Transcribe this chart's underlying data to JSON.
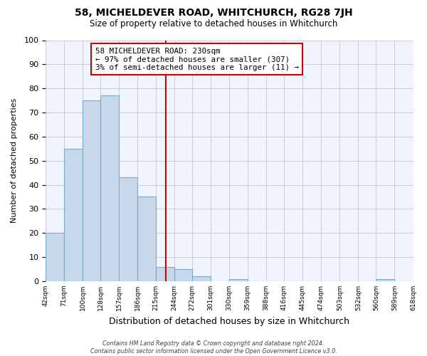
{
  "title": "58, MICHELDEVER ROAD, WHITCHURCH, RG28 7JH",
  "subtitle": "Size of property relative to detached houses in Whitchurch",
  "xlabel": "Distribution of detached houses by size in Whitchurch",
  "ylabel": "Number of detached properties",
  "bin_edges": [
    42,
    71,
    100,
    128,
    157,
    186,
    215,
    244,
    272,
    301,
    330,
    359,
    388,
    416,
    445,
    474,
    503,
    532,
    560,
    589,
    618
  ],
  "bin_counts": [
    20,
    55,
    75,
    77,
    43,
    35,
    6,
    5,
    2,
    0,
    1,
    0,
    0,
    0,
    0,
    0,
    0,
    0,
    1,
    0
  ],
  "bar_facecolor": "#c8d8eb",
  "bar_edgecolor": "#7aaac8",
  "property_line_x": 230,
  "property_line_color": "#cc0000",
  "annotation_text": "58 MICHELDEVER ROAD: 230sqm\n← 97% of detached houses are smaller (307)\n3% of semi-detached houses are larger (11) →",
  "annotation_box_edgecolor": "#cc0000",
  "annotation_box_facecolor": "#ffffff",
  "ylim": [
    0,
    100
  ],
  "yticks": [
    0,
    10,
    20,
    30,
    40,
    50,
    60,
    70,
    80,
    90,
    100
  ],
  "grid_color": "#cccccc",
  "background_color": "#ffffff",
  "plot_bg_color": "#f0f4ff",
  "footer_text": "Contains HM Land Registry data © Crown copyright and database right 2024.\nContains public sector information licensed under the Open Government Licence v3.0.",
  "tick_labels": [
    "42sqm",
    "71sqm",
    "100sqm",
    "128sqm",
    "157sqm",
    "186sqm",
    "215sqm",
    "244sqm",
    "272sqm",
    "301sqm",
    "330sqm",
    "359sqm",
    "388sqm",
    "416sqm",
    "445sqm",
    "474sqm",
    "503sqm",
    "532sqm",
    "560sqm",
    "589sqm",
    "618sqm"
  ]
}
